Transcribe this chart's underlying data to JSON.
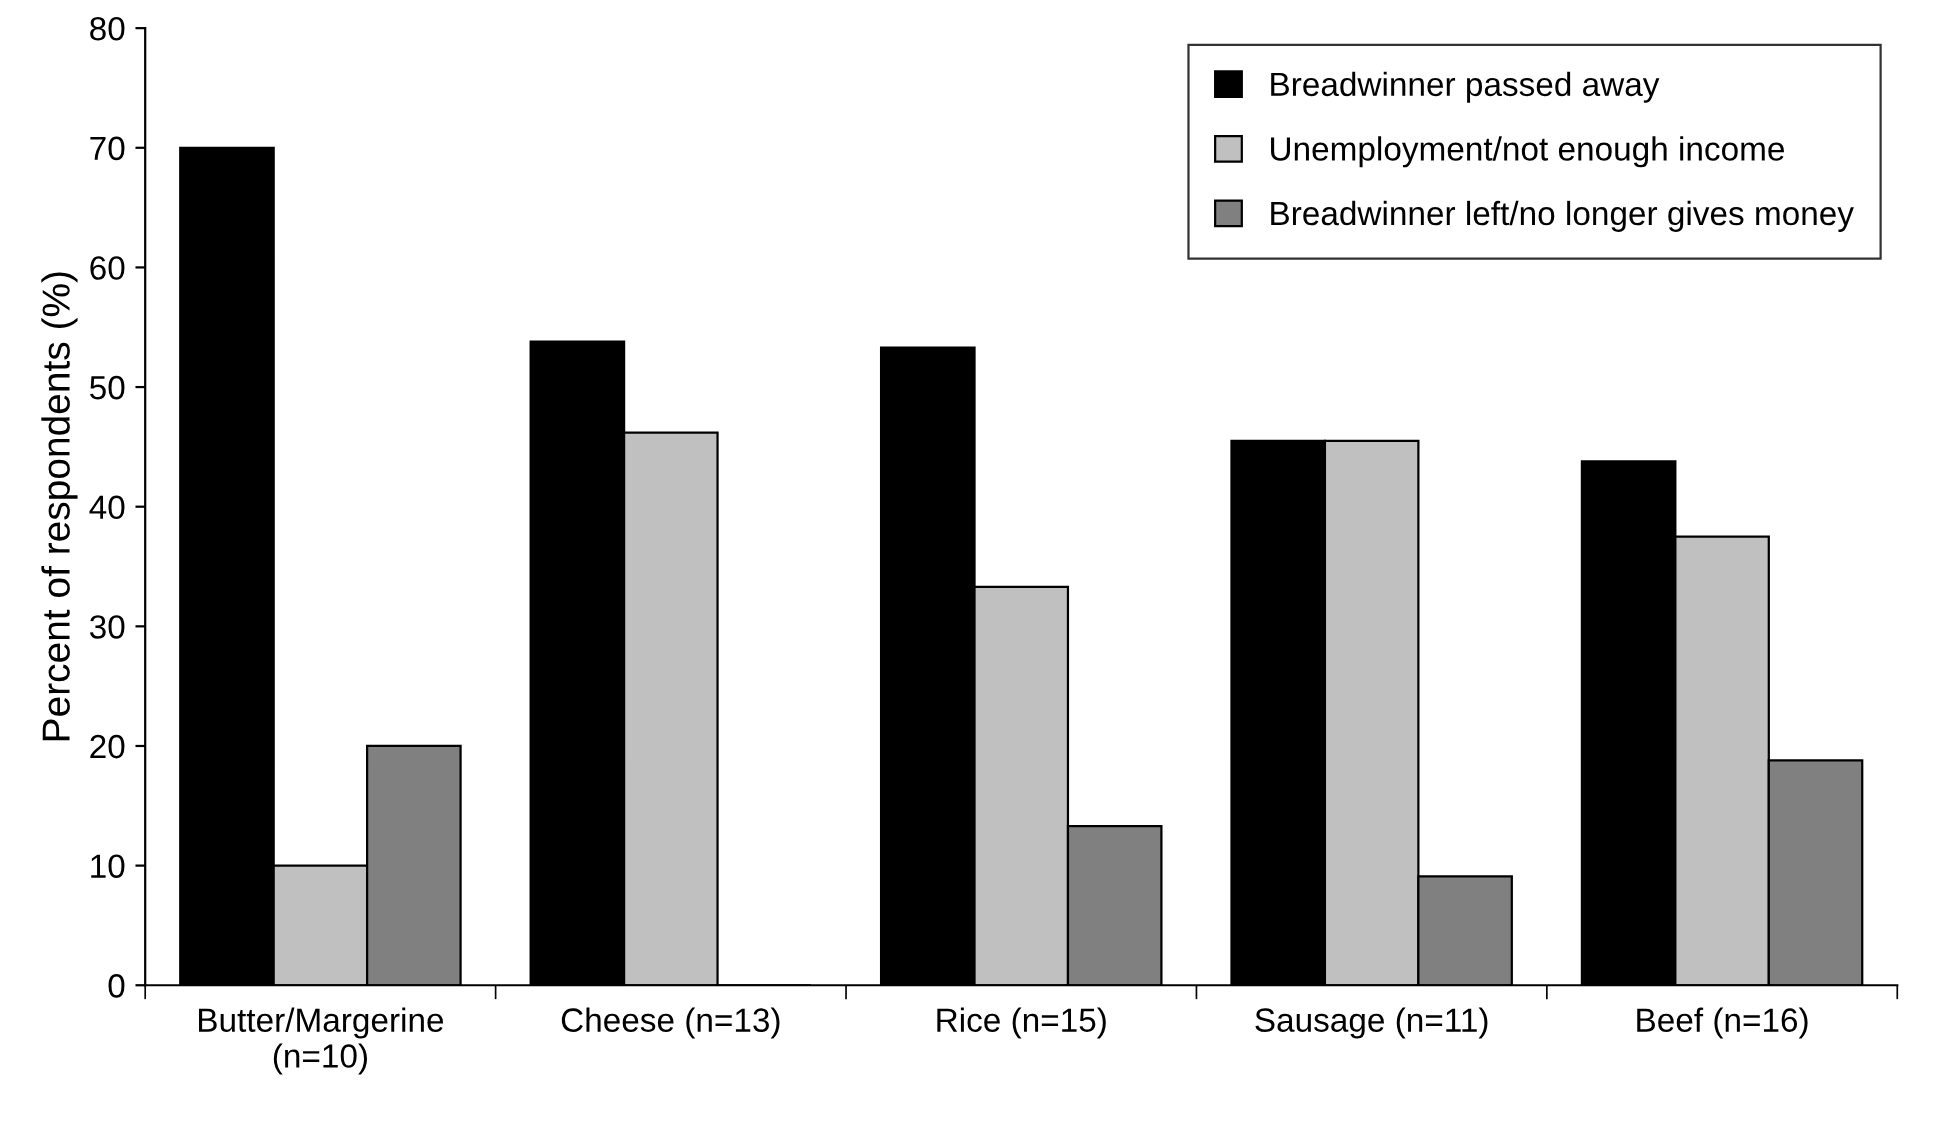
{
  "chart_data": {
    "type": "bar",
    "ylabel": "Percent of respondents (%)",
    "categories": [
      "Butter/Margerine\n(n=10)",
      "Cheese (n=13)",
      "Rice (n=15)",
      "Sausage (n=11)",
      "Beef (n=16)"
    ],
    "series": [
      {
        "name": "Breadwinner passed away",
        "color": "#000000",
        "values": [
          70,
          53.8,
          53.3,
          45.5,
          43.8
        ]
      },
      {
        "name": "Unemployment/not enough income",
        "color": "#c0c0c0",
        "values": [
          10,
          46.2,
          33.3,
          45.5,
          37.5
        ]
      },
      {
        "name": "Breadwinner left/no longer gives money",
        "color": "#808080",
        "values": [
          20,
          0,
          13.3,
          9.1,
          18.8
        ]
      }
    ],
    "ylim": [
      0,
      80
    ],
    "yticks": [
      0,
      10,
      20,
      30,
      40,
      50,
      60,
      70,
      80
    ],
    "grid": false,
    "legend": "top right"
  }
}
